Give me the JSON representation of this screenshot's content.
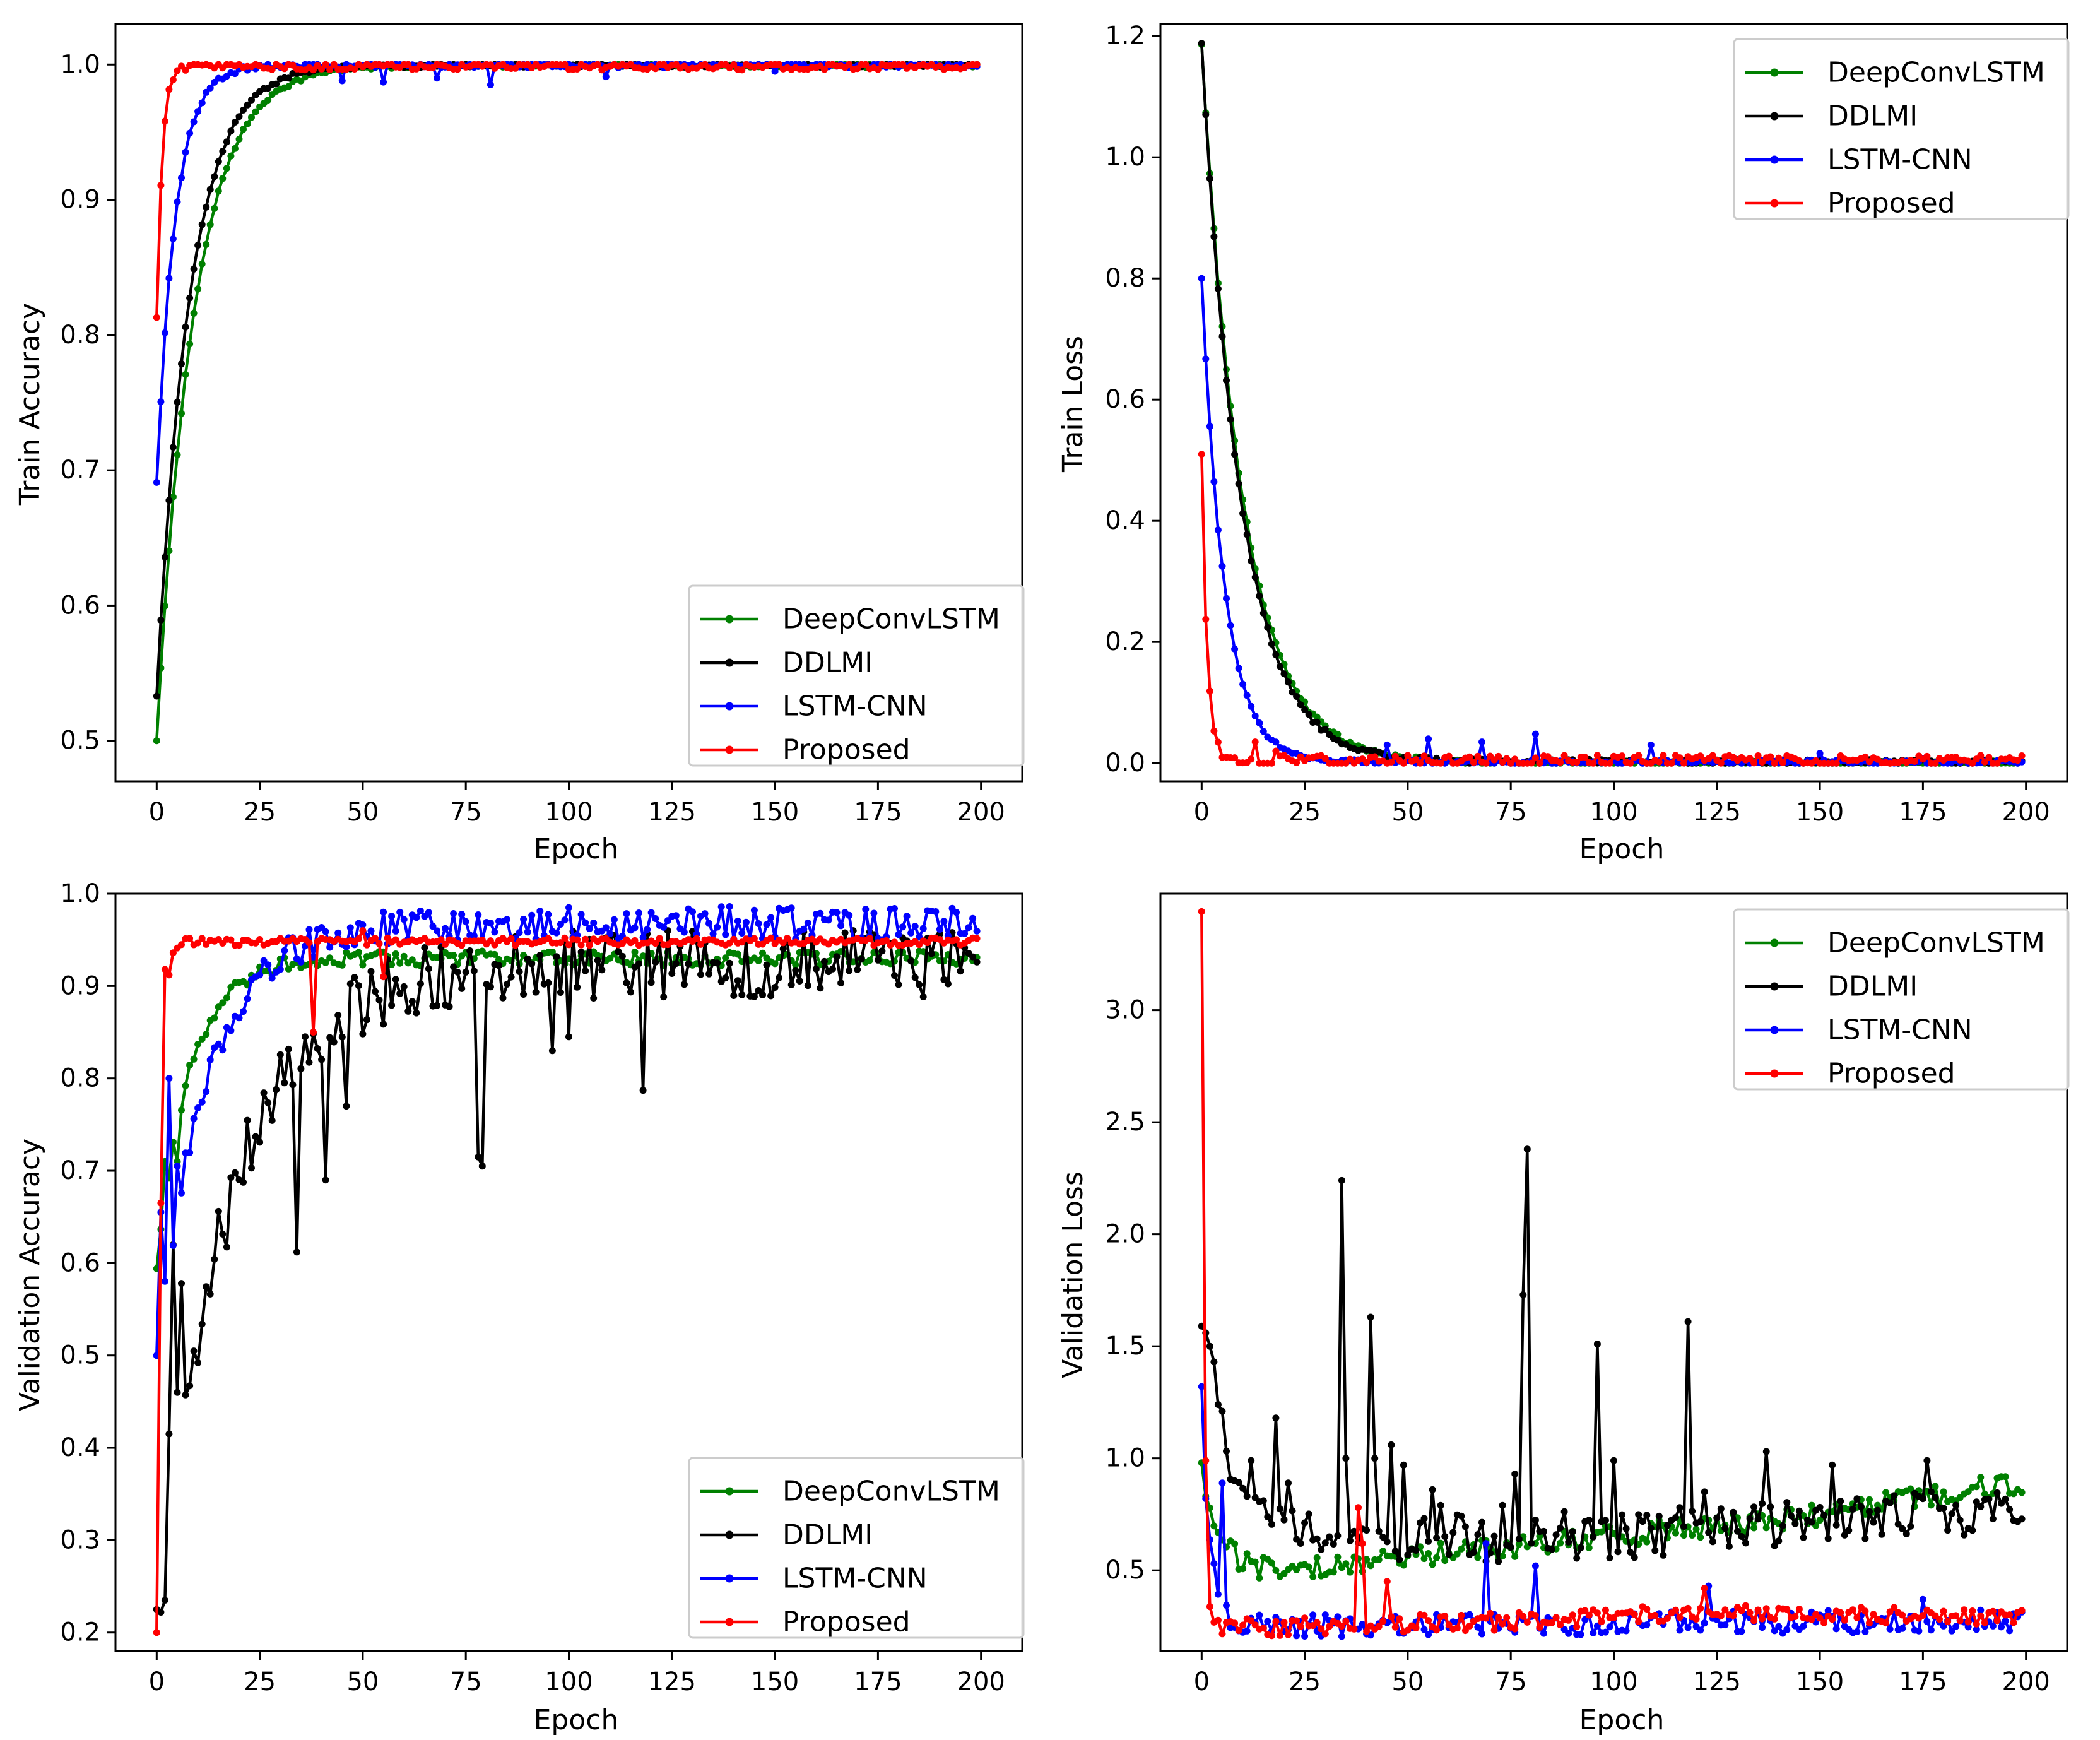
{
  "chart_data": [
    {
      "type": "line",
      "xlabel": "Epoch",
      "ylabel": "Train Accuracy",
      "xlim": [
        -10,
        210
      ],
      "ylim": [
        0.47,
        1.03
      ],
      "xticks": [
        0,
        25,
        50,
        75,
        100,
        125,
        150,
        175,
        200
      ],
      "yticks": [
        0.5,
        0.6,
        0.7,
        0.8,
        0.9,
        1.0
      ],
      "ytick_labels": [
        "0.5",
        "0.6",
        "0.7",
        "0.8",
        "0.9",
        "1.0"
      ],
      "legend_position": "lower-right",
      "series": [
        {
          "name": "DeepConvLSTM",
          "color": "#008000",
          "start": 0.5,
          "final": 0.9995,
          "tau": 9,
          "noise": 0.0015,
          "jitter": 0,
          "spikes": []
        },
        {
          "name": "DDLMI",
          "color": "#000000",
          "start": 0.533,
          "final": 0.9995,
          "tau": 8,
          "noise": 0.0015,
          "jitter": 0,
          "spikes": []
        },
        {
          "name": "LSTM-CNN",
          "color": "#0000ff",
          "start": 0.691,
          "final": 0.9995,
          "tau": 4.5,
          "noise": 0.002,
          "jitter": 0,
          "spikes": [
            [
              45,
              0.988
            ],
            [
              55,
              0.987
            ],
            [
              68,
              0.99
            ],
            [
              81,
              0.985
            ],
            [
              109,
              0.991
            ],
            [
              150,
              0.995
            ]
          ]
        },
        {
          "name": "Proposed",
          "color": "#ff0000",
          "start": 0.813,
          "final": 0.999,
          "tau": 1.3,
          "noise": 0.003,
          "jitter": 0,
          "spikes": []
        }
      ]
    },
    {
      "type": "line",
      "xlabel": "Epoch",
      "ylabel": "Train Loss",
      "xlim": [
        -10,
        210
      ],
      "ylim": [
        -0.03,
        1.22
      ],
      "xticks": [
        0,
        25,
        50,
        75,
        100,
        125,
        150,
        175,
        200
      ],
      "yticks": [
        0.0,
        0.2,
        0.4,
        0.6,
        0.8,
        1.0,
        1.2
      ],
      "ytick_labels": [
        "0.0",
        "0.2",
        "0.4",
        "0.6",
        "0.8",
        "1.0",
        "1.2"
      ],
      "legend_position": "upper-right",
      "series": [
        {
          "name": "DeepConvLSTM",
          "color": "#008000",
          "start": 1.186,
          "final": 0.0,
          "tau": 10,
          "noise": 0.004,
          "jitter": 0,
          "spikes": []
        },
        {
          "name": "DDLMI",
          "color": "#000000",
          "start": 1.188,
          "final": 0.002,
          "tau": 9.5,
          "noise": 0.004,
          "jitter": 0,
          "spikes": []
        },
        {
          "name": "LSTM-CNN",
          "color": "#0000ff",
          "start": 0.8,
          "final": 0.002,
          "tau": 5.5,
          "noise": 0.003,
          "jitter": 0,
          "spikes": [
            [
              45,
              0.03
            ],
            [
              55,
              0.04
            ],
            [
              68,
              0.035
            ],
            [
              81,
              0.048
            ],
            [
              109,
              0.03
            ],
            [
              150,
              0.016
            ],
            [
              175,
              0.008
            ]
          ]
        },
        {
          "name": "Proposed",
          "color": "#ff0000",
          "start": 0.51,
          "final": 0.005,
          "tau": 1.3,
          "noise": 0.008,
          "jitter": 0,
          "spikes": [
            [
              13,
              0.035
            ],
            [
              18,
              0.02
            ]
          ]
        }
      ]
    },
    {
      "type": "line",
      "xlabel": "Epoch",
      "ylabel": "Validation Accuracy",
      "xlim": [
        -10,
        210
      ],
      "ylim": [
        0.18,
        1.0
      ],
      "xticks": [
        0,
        25,
        50,
        75,
        100,
        125,
        150,
        175,
        200
      ],
      "yticks": [
        0.2,
        0.3,
        0.4,
        0.5,
        0.6,
        0.7,
        0.8,
        0.9,
        1.0
      ],
      "ytick_labels": [
        "0.2",
        "0.3",
        "0.4",
        "0.5",
        "0.6",
        "0.7",
        "0.8",
        "0.9",
        "1.0"
      ],
      "legend_position": "lower-right",
      "series": [
        {
          "name": "DeepConvLSTM",
          "color": "#008000",
          "start": 0.594,
          "final": 0.93,
          "tau": 8,
          "noise": 0.008,
          "jitter": 0,
          "spikes": [
            [
              2,
              0.71
            ],
            [
              5,
              0.71
            ]
          ]
        },
        {
          "name": "DDLMI",
          "color": "#000000",
          "start": 0.225,
          "final": 0.925,
          "tau": 18,
          "noise": 0.012,
          "jitter": 0.025,
          "spikes": [
            [
              1,
              0.222
            ],
            [
              2,
              0.235
            ],
            [
              3,
              0.415
            ],
            [
              4,
              0.62
            ],
            [
              5,
              0.46
            ],
            [
              6,
              0.578
            ],
            [
              34,
              0.612
            ],
            [
              41,
              0.69
            ],
            [
              46,
              0.77
            ],
            [
              78,
              0.715
            ],
            [
              79,
              0.705
            ],
            [
              96,
              0.83
            ],
            [
              100,
              0.845
            ],
            [
              118,
              0.787
            ]
          ]
        },
        {
          "name": "LSTM-CNN",
          "color": "#0000ff",
          "start": 0.5,
          "final": 0.968,
          "tau": 12,
          "noise": 0.006,
          "jitter": 0.012,
          "spikes": [
            [
              1,
              0.655
            ],
            [
              3,
              0.8
            ],
            [
              5,
              0.705
            ],
            [
              62,
              0.977
            ]
          ]
        },
        {
          "name": "Proposed",
          "color": "#ff0000",
          "start": 0.2,
          "final": 0.948,
          "tau": 1.0,
          "noise": 0.004,
          "jitter": 0,
          "spikes": [
            [
              1,
              0.665
            ],
            [
              2,
              0.918
            ],
            [
              38,
              0.85
            ],
            [
              50,
              0.96
            ],
            [
              55,
              0.91
            ]
          ]
        }
      ]
    },
    {
      "type": "line",
      "xlabel": "Epoch",
      "ylabel": "Validation Loss",
      "xlim": [
        -10,
        210
      ],
      "ylim": [
        0.14,
        3.52
      ],
      "xticks": [
        0,
        25,
        50,
        75,
        100,
        125,
        150,
        175,
        200
      ],
      "yticks": [
        0.5,
        1.0,
        1.5,
        2.0,
        2.5,
        3.0
      ],
      "ytick_labels": [
        "0.5",
        "1.0",
        "1.5",
        "2.0",
        "2.5",
        "3.0"
      ],
      "legend_position": "upper-right",
      "series": [
        {
          "name": "DeepConvLSTM",
          "color": "#008000",
          "start": 0.98,
          "final": 0.45,
          "tau": 5,
          "drift": [
            [
              60,
              0.58
            ],
            [
              150,
              0.75
            ],
            [
              200,
              0.9
            ]
          ],
          "noise": 0.03,
          "jitter": 0.02,
          "spikes": [
            [
              1,
              0.83
            ]
          ]
        },
        {
          "name": "DDLMI",
          "color": "#000000",
          "start": 1.59,
          "final": 0.62,
          "tau": 7,
          "drift": [
            [
              100,
              0.66
            ],
            [
              200,
              0.78
            ]
          ],
          "noise": 0.06,
          "jitter": 0.05,
          "spikes": [
            [
              1,
              1.56
            ],
            [
              2,
              1.5
            ],
            [
              3,
              1.43
            ],
            [
              4,
              1.24
            ],
            [
              5,
              1.21
            ],
            [
              12,
              0.99
            ],
            [
              18,
              1.18
            ],
            [
              21,
              0.89
            ],
            [
              34,
              2.24
            ],
            [
              35,
              1.0
            ],
            [
              41,
              1.63
            ],
            [
              42,
              1.0
            ],
            [
              46,
              1.06
            ],
            [
              49,
              0.97
            ],
            [
              56,
              0.86
            ],
            [
              58,
              0.79
            ],
            [
              73,
              0.79
            ],
            [
              76,
              0.93
            ],
            [
              78,
              1.73
            ],
            [
              79,
              2.38
            ],
            [
              96,
              1.51
            ],
            [
              100,
              0.99
            ],
            [
              118,
              1.61
            ],
            [
              122,
              0.85
            ],
            [
              137,
              1.03
            ],
            [
              153,
              0.97
            ],
            [
              176,
              0.99
            ]
          ]
        },
        {
          "name": "LSTM-CNN",
          "color": "#0000ff",
          "start": 1.32,
          "final": 0.25,
          "tau": 2,
          "drift": [
            [
              150,
              0.27
            ],
            [
              200,
              0.28
            ]
          ],
          "noise": 0.02,
          "jitter": 0.03,
          "spikes": [
            [
              1,
              0.82
            ],
            [
              3,
              0.53
            ],
            [
              5,
              0.89
            ],
            [
              69,
              0.62
            ],
            [
              81,
              0.52
            ],
            [
              123,
              0.43
            ],
            [
              175,
              0.37
            ]
          ]
        },
        {
          "name": "Proposed",
          "color": "#ff0000",
          "start": 3.44,
          "final": 0.24,
          "tau": 0.6,
          "drift": [
            [
              70,
              0.27
            ],
            [
              120,
              0.31
            ],
            [
              200,
              0.29
            ]
          ],
          "noise": 0.02,
          "jitter": 0.02,
          "spikes": [
            [
              1,
              0.99
            ],
            [
              38,
              0.78
            ],
            [
              39,
              0.62
            ],
            [
              45,
              0.45
            ],
            [
              122,
              0.42
            ]
          ]
        }
      ]
    }
  ]
}
